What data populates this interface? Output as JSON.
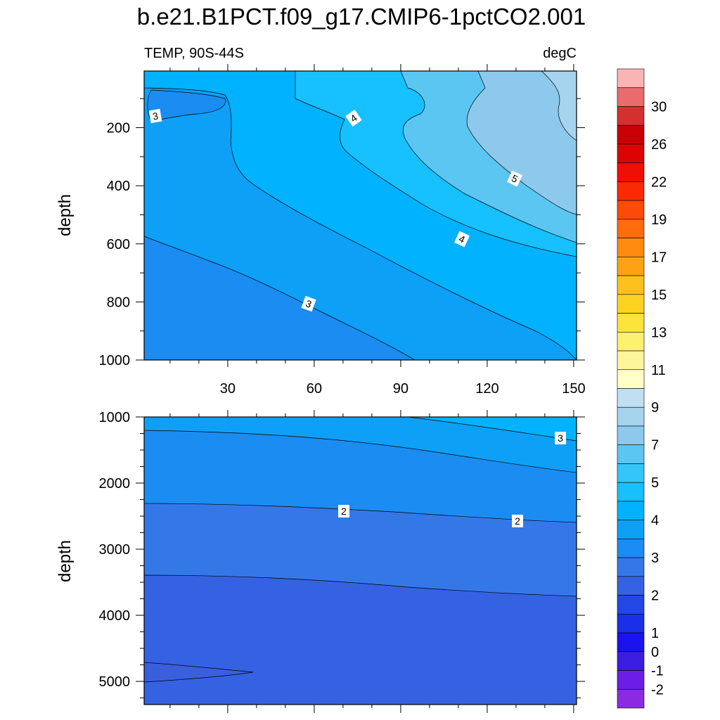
{
  "title": "b.e21.B1PCT.f09_g17.CMIP6-1pctCO2.001",
  "left_subtitle": "TEMP, 90S-44S",
  "right_subtitle": "degC",
  "colorbar": {
    "colors": [
      "#8a2be2",
      "#6b1fe6",
      "#3a1de0",
      "#1a13f0",
      "#1a2fea",
      "#2346e6",
      "#3561e3",
      "#3478e8",
      "#1b8cf2",
      "#0ea0f7",
      "#00b2ff",
      "#17c0ff",
      "#34c6f8",
      "#5bc6f2",
      "#8cc9ec",
      "#a6d3ee",
      "#c0e0f2",
      "#ffffc8",
      "#fff59b",
      "#fef070",
      "#fde43a",
      "#fed221",
      "#fec01a",
      "#fea214",
      "#fe8a10",
      "#fe6c0c",
      "#fd4a08",
      "#fb2a05",
      "#ee0f05",
      "#dc0305",
      "#c80005",
      "#d53030",
      "#e96b6b",
      "#fbb4b4"
    ],
    "labels": [
      "-2",
      "-1",
      "0",
      "1",
      "2",
      "3",
      "4",
      "5",
      "7",
      "9",
      "11",
      "13",
      "15",
      "17",
      "19",
      "22",
      "26",
      "30"
    ]
  },
  "chart_data": [
    {
      "type": "contour",
      "panel": "upper",
      "title": "b.e21.B1PCT.f09_g17.CMIP6-1pctCO2.001",
      "left_string": "TEMP, 90S-44S",
      "right_string": "degC",
      "ylabel": "depth",
      "xlabel": "",
      "xlim": [
        1,
        151
      ],
      "ylim": [
        1000,
        5
      ],
      "xticks": [
        30,
        60,
        90,
        120,
        150
      ],
      "xticklabels": [
        "30",
        "60",
        "90",
        "120",
        "150"
      ],
      "yticks": [
        200,
        400,
        600,
        800,
        1000
      ],
      "yticklabels": [
        "200",
        "400",
        "600",
        "800",
        "1000"
      ],
      "contour_labels": [
        "3",
        "4",
        "4",
        "5",
        "3"
      ],
      "regions": [
        {
          "value_range": "2.5-3",
          "color_index": 8
        },
        {
          "value_range": "3-3.5",
          "color_index": 9
        },
        {
          "value_range": "3.5-4",
          "color_index": 10
        },
        {
          "value_range": "4-4.5",
          "color_index": 11
        },
        {
          "value_range": "4.5-5",
          "color_index": 12
        },
        {
          "value_range": "5-6",
          "color_index": 13
        },
        {
          "value_range": "6-7",
          "color_index": 14
        }
      ]
    },
    {
      "type": "contour",
      "panel": "lower",
      "ylabel": "depth",
      "xlim": [
        1,
        151
      ],
      "ylim": [
        5350,
        1000
      ],
      "xticks": [
        30,
        60,
        90,
        120,
        150
      ],
      "yticks": [
        1000,
        2000,
        3000,
        4000,
        5000
      ],
      "yticklabels": [
        "1000",
        "2000",
        "3000",
        "4000",
        "5000"
      ],
      "contour_labels": [
        "3",
        "2",
        "2"
      ],
      "regions": [
        {
          "value_range": "1-1.5",
          "color_index": 5
        },
        {
          "value_range": "1.5-2",
          "color_index": 6
        },
        {
          "value_range": "2-2.5",
          "color_index": 7
        },
        {
          "value_range": "2.5-3",
          "color_index": 8
        },
        {
          "value_range": "3-3.5",
          "color_index": 9
        }
      ]
    }
  ]
}
